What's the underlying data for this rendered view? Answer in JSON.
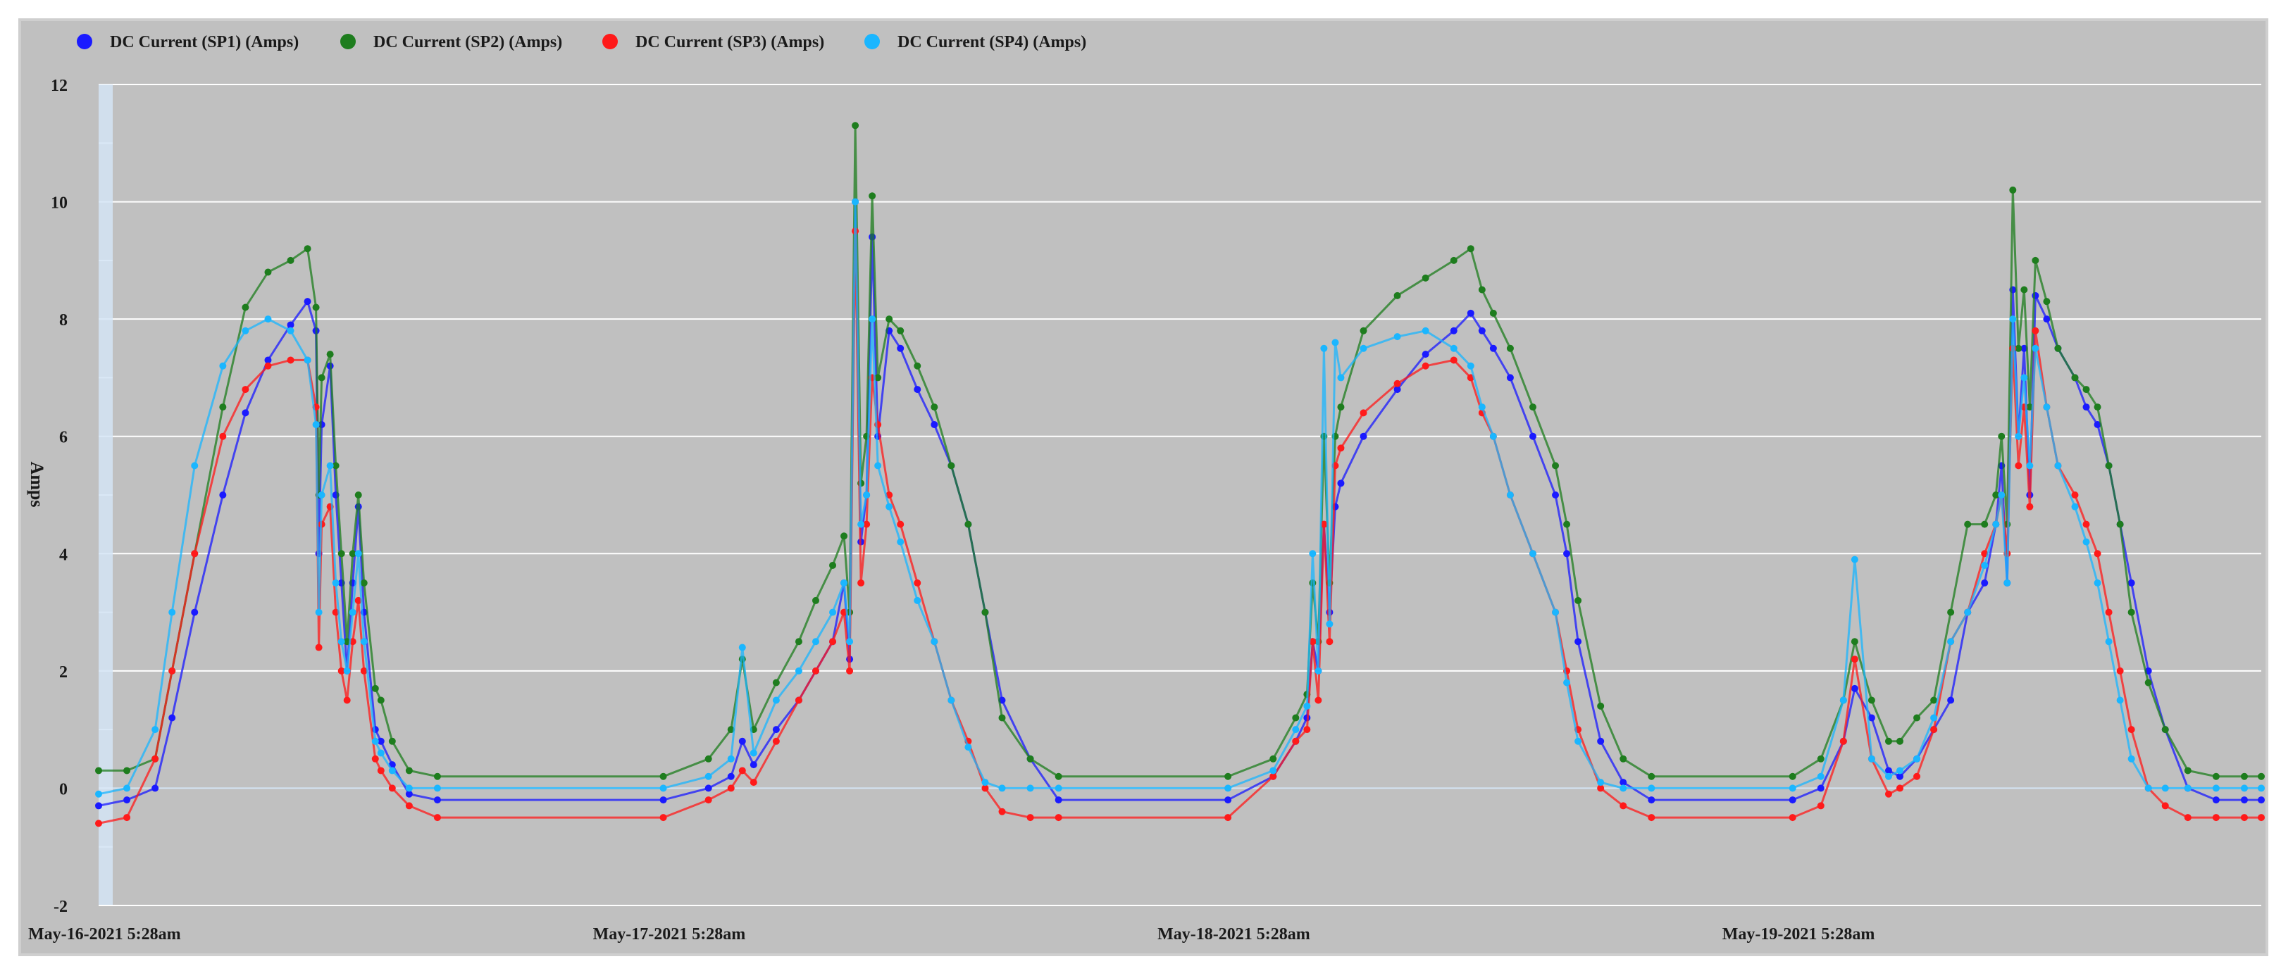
{
  "chart_data": {
    "type": "line",
    "title": "",
    "xlabel": "",
    "ylabel": "Amps",
    "ylim": [
      -2,
      12
    ],
    "y_ticks": [
      -2,
      0,
      2,
      4,
      6,
      8,
      10,
      12
    ],
    "x_tick_labels": [
      "May-16-2021 5:28am",
      "May-17-2021 5:28am",
      "May-18-2021 5:28am",
      "May-19-2021 5:28am"
    ],
    "x_range_days": [
      0,
      3.83
    ],
    "legend_position": "top-left",
    "grid": true,
    "x_unit": "days since May-16-2021 5:28am",
    "colors": {
      "plot_background": "#c0c0c0",
      "gridline": "#ffffff",
      "zero_line": "#d4e4f4",
      "outer_frame": "#c8c8c8",
      "sp1": "#1a1aff",
      "sp2": "#1e7d1e",
      "sp3": "#ff1a1a",
      "sp4": "#1ab6ff"
    },
    "series": [
      {
        "name": "DC Current (SP1) (Amps)",
        "color": "#1a1aff",
        "x": [
          0,
          0.05,
          0.1,
          0.13,
          0.17,
          0.22,
          0.26,
          0.3,
          0.34,
          0.37,
          0.385,
          0.39,
          0.395,
          0.41,
          0.42,
          0.43,
          0.44,
          0.45,
          0.46,
          0.47,
          0.49,
          0.5,
          0.52,
          0.55,
          0.6,
          1.0,
          1.08,
          1.12,
          1.14,
          1.16,
          1.2,
          1.24,
          1.27,
          1.3,
          1.32,
          1.33,
          1.34,
          1.35,
          1.36,
          1.37,
          1.38,
          1.4,
          1.42,
          1.45,
          1.48,
          1.51,
          1.54,
          1.57,
          1.6,
          1.65,
          1.7,
          2.0,
          2.08,
          2.12,
          2.14,
          2.15,
          2.16,
          2.17,
          2.18,
          2.19,
          2.2,
          2.24,
          2.3,
          2.35,
          2.4,
          2.43,
          2.45,
          2.47,
          2.5,
          2.54,
          2.58,
          2.6,
          2.62,
          2.66,
          2.7,
          2.75,
          3.0,
          3.05,
          3.09,
          3.11,
          3.14,
          3.17,
          3.19,
          3.22,
          3.25,
          3.28,
          3.31,
          3.34,
          3.36,
          3.37,
          3.38,
          3.39,
          3.4,
          3.41,
          3.42,
          3.43,
          3.45,
          3.47,
          3.5,
          3.52,
          3.54,
          3.56,
          3.58,
          3.6,
          3.63,
          3.66,
          3.7,
          3.75,
          3.8,
          3.83
        ],
        "values": [
          -0.3,
          -0.2,
          0.0,
          1.2,
          3.0,
          5.0,
          6.4,
          7.3,
          7.9,
          8.3,
          7.8,
          4.0,
          6.2,
          7.2,
          5.0,
          3.5,
          2.0,
          3.5,
          4.8,
          3.0,
          1.0,
          0.8,
          0.4,
          -0.1,
          -0.2,
          -0.2,
          0.0,
          0.2,
          0.8,
          0.4,
          1.0,
          1.5,
          2.0,
          2.5,
          3.5,
          2.2,
          10.0,
          4.2,
          5.0,
          9.4,
          6.0,
          7.8,
          7.5,
          6.8,
          6.2,
          5.5,
          4.5,
          3.0,
          1.5,
          0.5,
          -0.2,
          -0.2,
          0.2,
          0.8,
          1.2,
          2.5,
          2.0,
          4.5,
          3.0,
          4.8,
          5.2,
          6.0,
          6.8,
          7.4,
          7.8,
          8.1,
          7.8,
          7.5,
          7.0,
          6.0,
          5.0,
          4.0,
          2.5,
          0.8,
          0.1,
          -0.2,
          -0.2,
          0.0,
          0.8,
          1.7,
          1.2,
          0.3,
          0.2,
          0.5,
          1.0,
          1.5,
          3.0,
          3.5,
          4.5,
          5.5,
          3.5,
          8.5,
          6.0,
          7.5,
          5.0,
          8.4,
          8.0,
          7.5,
          7.0,
          6.5,
          6.2,
          5.5,
          4.5,
          3.5,
          2.0,
          1.0,
          0.0,
          -0.2,
          -0.2,
          -0.2
        ]
      },
      {
        "name": "DC Current (SP2) (Amps)",
        "color": "#1e7d1e",
        "x": [
          0,
          0.05,
          0.1,
          0.13,
          0.17,
          0.22,
          0.26,
          0.3,
          0.34,
          0.37,
          0.385,
          0.39,
          0.395,
          0.41,
          0.42,
          0.43,
          0.44,
          0.45,
          0.46,
          0.47,
          0.49,
          0.5,
          0.52,
          0.55,
          0.6,
          1.0,
          1.08,
          1.12,
          1.14,
          1.16,
          1.2,
          1.24,
          1.27,
          1.3,
          1.32,
          1.33,
          1.34,
          1.35,
          1.36,
          1.37,
          1.38,
          1.4,
          1.42,
          1.45,
          1.48,
          1.51,
          1.54,
          1.57,
          1.6,
          1.65,
          1.7,
          2.0,
          2.08,
          2.12,
          2.14,
          2.15,
          2.16,
          2.17,
          2.18,
          2.19,
          2.2,
          2.24,
          2.3,
          2.35,
          2.4,
          2.43,
          2.45,
          2.47,
          2.5,
          2.54,
          2.58,
          2.6,
          2.62,
          2.66,
          2.7,
          2.75,
          3.0,
          3.05,
          3.09,
          3.11,
          3.14,
          3.17,
          3.19,
          3.22,
          3.25,
          3.28,
          3.31,
          3.34,
          3.36,
          3.37,
          3.38,
          3.39,
          3.4,
          3.41,
          3.42,
          3.43,
          3.45,
          3.47,
          3.5,
          3.52,
          3.54,
          3.56,
          3.58,
          3.6,
          3.63,
          3.66,
          3.7,
          3.75,
          3.8,
          3.83
        ],
        "values": [
          0.3,
          0.3,
          0.5,
          2.0,
          4.0,
          6.5,
          8.2,
          8.8,
          9.0,
          9.2,
          8.2,
          5.0,
          7.0,
          7.4,
          5.5,
          4.0,
          2.5,
          4.0,
          5.0,
          3.5,
          1.7,
          1.5,
          0.8,
          0.3,
          0.2,
          0.2,
          0.5,
          1.0,
          2.2,
          1.0,
          1.8,
          2.5,
          3.2,
          3.8,
          4.3,
          3.0,
          11.3,
          5.2,
          6.0,
          10.1,
          7.0,
          8.0,
          7.8,
          7.2,
          6.5,
          5.5,
          4.5,
          3.0,
          1.2,
          0.5,
          0.2,
          0.2,
          0.5,
          1.2,
          1.6,
          3.5,
          2.5,
          6.0,
          3.5,
          6.0,
          6.5,
          7.8,
          8.4,
          8.7,
          9.0,
          9.2,
          8.5,
          8.1,
          7.5,
          6.5,
          5.5,
          4.5,
          3.2,
          1.4,
          0.5,
          0.2,
          0.2,
          0.5,
          1.5,
          2.5,
          1.5,
          0.8,
          0.8,
          1.2,
          1.5,
          3.0,
          4.5,
          4.5,
          5.0,
          6.0,
          4.5,
          10.2,
          7.5,
          8.5,
          6.5,
          9.0,
          8.3,
          7.5,
          7.0,
          6.8,
          6.5,
          5.5,
          4.5,
          3.0,
          1.8,
          1.0,
          0.3,
          0.2,
          0.2,
          0.2
        ]
      },
      {
        "name": "DC Current (SP3) (Amps)",
        "color": "#ff1a1a",
        "x": [
          0,
          0.05,
          0.1,
          0.13,
          0.17,
          0.22,
          0.26,
          0.3,
          0.34,
          0.37,
          0.385,
          0.39,
          0.395,
          0.41,
          0.42,
          0.43,
          0.44,
          0.45,
          0.46,
          0.47,
          0.49,
          0.5,
          0.52,
          0.55,
          0.6,
          1.0,
          1.08,
          1.12,
          1.14,
          1.16,
          1.2,
          1.24,
          1.27,
          1.3,
          1.32,
          1.33,
          1.34,
          1.35,
          1.36,
          1.37,
          1.38,
          1.4,
          1.42,
          1.45,
          1.48,
          1.51,
          1.54,
          1.57,
          1.6,
          1.65,
          1.7,
          2.0,
          2.08,
          2.12,
          2.14,
          2.15,
          2.16,
          2.17,
          2.18,
          2.19,
          2.2,
          2.24,
          2.3,
          2.35,
          2.4,
          2.43,
          2.45,
          2.47,
          2.5,
          2.54,
          2.58,
          2.6,
          2.62,
          2.66,
          2.7,
          2.75,
          3.0,
          3.05,
          3.09,
          3.11,
          3.14,
          3.17,
          3.19,
          3.22,
          3.25,
          3.28,
          3.31,
          3.34,
          3.36,
          3.37,
          3.38,
          3.39,
          3.4,
          3.41,
          3.42,
          3.43,
          3.45,
          3.47,
          3.5,
          3.52,
          3.54,
          3.56,
          3.58,
          3.6,
          3.63,
          3.66,
          3.7,
          3.75,
          3.8,
          3.83
        ],
        "values": [
          -0.6,
          -0.5,
          0.5,
          2.0,
          4.0,
          6.0,
          6.8,
          7.2,
          7.3,
          7.3,
          6.5,
          2.4,
          4.5,
          4.8,
          3.0,
          2.0,
          1.5,
          2.5,
          3.2,
          2.0,
          0.5,
          0.3,
          0.0,
          -0.3,
          -0.5,
          -0.5,
          -0.2,
          0.0,
          0.3,
          0.1,
          0.8,
          1.5,
          2.0,
          2.5,
          3.0,
          2.0,
          9.5,
          3.5,
          4.5,
          7.0,
          6.2,
          5.0,
          4.5,
          3.5,
          2.5,
          1.5,
          0.8,
          0.0,
          -0.4,
          -0.5,
          -0.5,
          -0.5,
          0.2,
          0.8,
          1.0,
          2.5,
          1.5,
          4.5,
          2.5,
          5.5,
          5.8,
          6.4,
          6.9,
          7.2,
          7.3,
          7.0,
          6.4,
          6.0,
          5.0,
          4.0,
          3.0,
          2.0,
          1.0,
          0.0,
          -0.3,
          -0.5,
          -0.5,
          -0.3,
          0.8,
          2.2,
          0.5,
          -0.1,
          0.0,
          0.2,
          1.0,
          2.5,
          3.0,
          4.0,
          4.5,
          5.0,
          4.0,
          7.5,
          5.5,
          6.5,
          4.8,
          7.8,
          6.5,
          5.5,
          5.0,
          4.5,
          4.0,
          3.0,
          2.0,
          1.0,
          0.0,
          -0.3,
          -0.5,
          -0.5,
          -0.5,
          -0.5
        ]
      },
      {
        "name": "DC Current (SP4) (Amps)",
        "color": "#1ab6ff",
        "x": [
          0,
          0.05,
          0.1,
          0.13,
          0.17,
          0.22,
          0.26,
          0.3,
          0.34,
          0.37,
          0.385,
          0.39,
          0.395,
          0.41,
          0.42,
          0.43,
          0.44,
          0.45,
          0.46,
          0.47,
          0.49,
          0.5,
          0.52,
          0.55,
          0.6,
          1.0,
          1.08,
          1.12,
          1.14,
          1.16,
          1.2,
          1.24,
          1.27,
          1.3,
          1.32,
          1.33,
          1.34,
          1.35,
          1.36,
          1.37,
          1.38,
          1.4,
          1.42,
          1.45,
          1.48,
          1.51,
          1.54,
          1.57,
          1.6,
          1.65,
          1.7,
          2.0,
          2.08,
          2.12,
          2.14,
          2.15,
          2.16,
          2.17,
          2.18,
          2.19,
          2.2,
          2.24,
          2.3,
          2.35,
          2.4,
          2.43,
          2.45,
          2.47,
          2.5,
          2.54,
          2.58,
          2.6,
          2.62,
          2.66,
          2.7,
          2.75,
          3.0,
          3.05,
          3.09,
          3.11,
          3.14,
          3.17,
          3.19,
          3.22,
          3.25,
          3.28,
          3.31,
          3.34,
          3.36,
          3.37,
          3.38,
          3.39,
          3.4,
          3.41,
          3.42,
          3.43,
          3.45,
          3.47,
          3.5,
          3.52,
          3.54,
          3.56,
          3.58,
          3.6,
          3.63,
          3.66,
          3.7,
          3.75,
          3.8,
          3.83
        ],
        "values": [
          -0.1,
          0.0,
          1.0,
          3.0,
          5.5,
          7.2,
          7.8,
          8.0,
          7.8,
          7.3,
          6.2,
          3.0,
          5.0,
          5.5,
          3.5,
          2.5,
          2.0,
          3.0,
          4.0,
          2.5,
          0.8,
          0.6,
          0.3,
          0.0,
          0.0,
          0.0,
          0.2,
          0.5,
          2.4,
          0.6,
          1.5,
          2.0,
          2.5,
          3.0,
          3.5,
          2.5,
          10.0,
          4.5,
          5.0,
          8.0,
          5.5,
          4.8,
          4.2,
          3.2,
          2.5,
          1.5,
          0.7,
          0.1,
          0.0,
          0.0,
          0.0,
          0.0,
          0.3,
          1.0,
          1.4,
          4.0,
          2.0,
          7.5,
          2.8,
          7.6,
          7.0,
          7.5,
          7.7,
          7.8,
          7.5,
          7.2,
          6.5,
          6.0,
          5.0,
          4.0,
          3.0,
          1.8,
          0.8,
          0.1,
          0.0,
          0.0,
          0.0,
          0.2,
          1.5,
          3.9,
          0.5,
          0.2,
          0.3,
          0.5,
          1.2,
          2.5,
          3.0,
          3.8,
          4.5,
          5.0,
          3.5,
          8.0,
          6.0,
          7.0,
          5.5,
          7.5,
          6.5,
          5.5,
          4.8,
          4.2,
          3.5,
          2.5,
          1.5,
          0.5,
          0.0,
          0.0,
          0.0,
          0.0,
          0.0,
          0.0
        ]
      }
    ]
  }
}
